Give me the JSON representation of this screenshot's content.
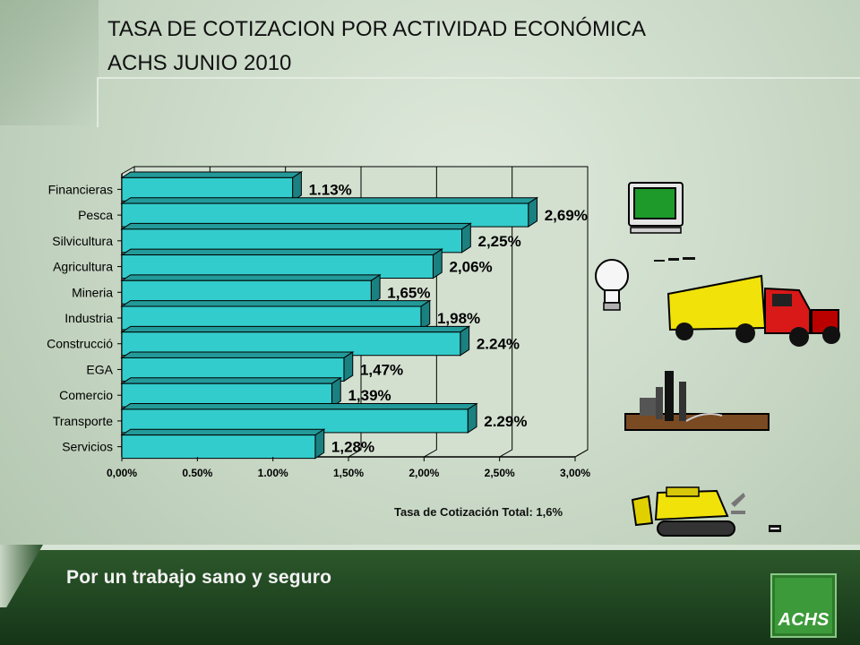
{
  "header": {
    "title_line1": "TASA DE COTIZACION POR ACTIVIDAD ECONÓMICA",
    "title_line2": "ACHS JUNIO 2010"
  },
  "note": "Tasa de Cotización  Total: 1,6%",
  "footer": {
    "slogan": "Por un trabajo sano y seguro",
    "logo_text": "ACHS"
  },
  "colors": {
    "bar_front": "#33cccc",
    "bar_side": "#1a8080",
    "bar_top": "#239a9a",
    "footer": "#1f4420"
  },
  "chart_data": {
    "type": "bar",
    "orientation": "horizontal",
    "categories": [
      "Financieras",
      "Pesca",
      "Silvicultura",
      "Agricultura",
      "Mineria",
      "Industria",
      "Construcció",
      "EGA",
      "Comercio",
      "Transporte",
      "Servicios"
    ],
    "values": [
      1.13,
      2.69,
      2.25,
      2.06,
      1.65,
      1.98,
      2.24,
      1.47,
      1.39,
      2.29,
      1.28
    ],
    "labels": [
      "1.13%",
      "2,69%",
      "2,25%",
      "2,06%",
      "1,65%",
      "1,98%",
      "2.24%",
      "1,47%",
      "1,39%",
      "2.29%",
      "1,28%"
    ],
    "xticks": [
      "0,00%",
      "0.50%",
      "1.00%",
      "1,50%",
      "2,00%",
      "2,50%",
      "3,00%"
    ],
    "xlim": [
      0,
      3
    ],
    "grid": true,
    "style": "3d"
  }
}
